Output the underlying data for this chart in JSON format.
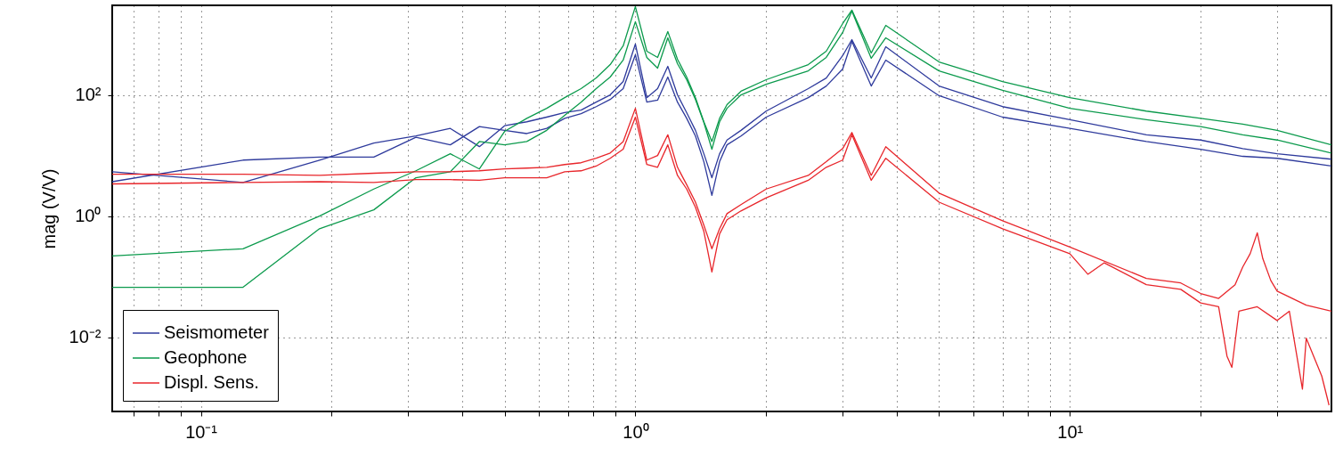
{
  "chart_data": {
    "type": "line",
    "ylabel": "mag (V/V)",
    "log": "xy",
    "grid": true,
    "legend": "bottom left",
    "xlim": [
      0.0625,
      40
    ],
    "ylim": [
      0.0006,
      3000
    ],
    "xticks": [
      {
        "value": 0.07,
        "label": null
      },
      {
        "value": 0.08,
        "label": null
      },
      {
        "value": 0.09,
        "label": null
      },
      {
        "value": 0.1,
        "label": "10⁻¹"
      },
      {
        "value": 0.2,
        "label": null
      },
      {
        "value": 0.3,
        "label": null
      },
      {
        "value": 0.4,
        "label": null
      },
      {
        "value": 0.5,
        "label": null
      },
      {
        "value": 0.6,
        "label": null
      },
      {
        "value": 0.7,
        "label": null
      },
      {
        "value": 0.8,
        "label": null
      },
      {
        "value": 0.9,
        "label": null
      },
      {
        "value": 1,
        "label": "10⁰"
      },
      {
        "value": 2,
        "label": null
      },
      {
        "value": 3,
        "label": null
      },
      {
        "value": 4,
        "label": null
      },
      {
        "value": 5,
        "label": null
      },
      {
        "value": 6,
        "label": null
      },
      {
        "value": 7,
        "label": null
      },
      {
        "value": 8,
        "label": null
      },
      {
        "value": 9,
        "label": null
      },
      {
        "value": 10,
        "label": "10¹"
      },
      {
        "value": 20,
        "label": null
      },
      {
        "value": 30,
        "label": null
      }
    ],
    "yticks": [
      {
        "value": 0.01,
        "label": "10⁻²"
      },
      {
        "value": 1,
        "label": "10⁰"
      },
      {
        "value": 100,
        "label": "10²"
      }
    ],
    "x": [
      0.0625,
      0.125,
      0.1875,
      0.25,
      0.3125,
      0.375,
      0.4375,
      0.5,
      0.5625,
      0.625,
      0.6875,
      0.75,
      0.8125,
      0.875,
      0.9375,
      1,
      1.0625,
      1.125,
      1.1875,
      1.25,
      1.3125,
      1.375,
      1.4375,
      1.5,
      1.5625,
      1.625,
      1.75,
      2,
      2.5,
      2.75,
      3,
      3.15,
      3.49,
      3.77,
      5,
      7,
      10,
      15,
      20,
      25,
      30,
      40
    ],
    "series": [
      {
        "name": "Seismometer",
        "color": "#2e3a9c",
        "values": [
          5.4,
          3.6,
          8.4,
          16,
          21,
          28,
          14,
          31,
          36,
          43,
          51,
          56,
          76,
          100,
          166,
          689,
          90,
          127,
          296,
          100,
          51,
          26,
          10.7,
          4.3,
          10.7,
          18,
          26,
          54,
          127,
          190,
          444,
          816,
          190,
          623,
          140,
          64,
          39,
          22,
          18,
          13,
          10.7,
          8.7
        ]
      },
      {
        "color": "#2e3a9c",
        "values": [
          3.7,
          8.4,
          9.4,
          9.4,
          20,
          15,
          30,
          26,
          23,
          28,
          41,
          49,
          64,
          84,
          127,
          459,
          76,
          82,
          197,
          76,
          41,
          21,
          7.9,
          2.2,
          7.9,
          15,
          21,
          43,
          90,
          140,
          267,
          763,
          140,
          375,
          97,
          43,
          28,
          17,
          12.7,
          9.7,
          9.0,
          6.7
        ]
      },
      {
        "name": "Geophone",
        "color": "#0b9a4c",
        "values": [
          0.22,
          0.29,
          1.0,
          2.8,
          5.6,
          10.7,
          6.0,
          25,
          41,
          60,
          90,
          127,
          190,
          316,
          644,
          2860,
          526,
          415,
          1110,
          387,
          197,
          90,
          36,
          17,
          41,
          69,
          115,
          178,
          316,
          526,
          1500,
          2500,
          491,
          1400,
          350,
          166,
          90,
          54,
          41,
          33,
          26,
          15
        ]
      },
      {
        "color": "#0b9a4c",
        "values": [
          0.067,
          0.067,
          0.62,
          1.27,
          4.3,
          5.4,
          17,
          15,
          17,
          26,
          46,
          76,
          127,
          197,
          375,
          1610,
          415,
          276,
          873,
          327,
          178,
          84,
          35,
          12.7,
          36,
          60,
          100,
          150,
          249,
          415,
          1070,
          2410,
          401,
          873,
          249,
          119,
          60,
          39,
          30,
          22,
          18,
          11
        ]
      },
      {
        "name": "Displ. Sens.",
        "color": "#e8262b",
        "x": [
          0.0625,
          0.125,
          0.1875,
          0.25,
          0.3125,
          0.375,
          0.4375,
          0.5,
          0.5625,
          0.625,
          0.6875,
          0.75,
          0.8125,
          0.875,
          0.9375,
          1,
          1.0625,
          1.125,
          1.1875,
          1.25,
          1.3125,
          1.375,
          1.4375,
          1.5,
          1.5625,
          1.625,
          1.75,
          2,
          2.5,
          2.75,
          3,
          3.15,
          3.49,
          3.77,
          5,
          7,
          10,
          15,
          18,
          20,
          22,
          24,
          25,
          26,
          27,
          27.8,
          29,
          30,
          35,
          40
        ],
        "values": [
          4.9,
          4.9,
          4.7,
          5.1,
          5.4,
          5.4,
          5.6,
          6.0,
          6.2,
          6.4,
          7.1,
          7.6,
          9.0,
          11,
          17,
          60,
          8.4,
          10,
          22,
          6.4,
          3.3,
          1.7,
          0.71,
          0.29,
          0.62,
          1.1,
          1.55,
          2.8,
          4.7,
          7.9,
          13,
          24,
          4.7,
          14,
          2.4,
          0.84,
          0.31,
          0.094,
          0.079,
          0.053,
          0.044,
          0.074,
          0.145,
          0.24,
          0.53,
          0.2,
          0.087,
          0.058,
          0.034,
          0.027
        ]
      },
      {
        "color": "#e8262b",
        "x": [
          0.0625,
          0.125,
          0.1875,
          0.25,
          0.3125,
          0.375,
          0.4375,
          0.5,
          0.5625,
          0.625,
          0.6875,
          0.75,
          0.8125,
          0.875,
          0.9375,
          1,
          1.0625,
          1.125,
          1.1875,
          1.25,
          1.3125,
          1.375,
          1.4375,
          1.5,
          1.5625,
          1.625,
          1.75,
          2,
          2.5,
          2.75,
          3,
          3.15,
          3.49,
          3.77,
          5,
          7,
          10,
          11,
          12,
          15,
          18,
          20,
          22,
          23,
          23.6,
          24.5,
          27,
          30,
          32,
          34.3,
          35,
          38,
          39.5
        ],
        "values": [
          3.4,
          3.6,
          3.7,
          3.6,
          4.0,
          4.0,
          3.9,
          4.3,
          4.3,
          4.3,
          5.4,
          5.6,
          6.7,
          9.0,
          12.7,
          43,
          7.1,
          6.4,
          15,
          4.7,
          2.8,
          1.4,
          0.56,
          0.12,
          0.51,
          0.87,
          1.22,
          2.0,
          3.9,
          6.4,
          8.4,
          22,
          3.9,
          9.0,
          1.7,
          0.62,
          0.24,
          0.11,
          0.17,
          0.074,
          0.062,
          0.037,
          0.032,
          0.0049,
          0.0032,
          0.027,
          0.032,
          0.019,
          0.027,
          0.0014,
          0.0097,
          0.0023,
          0.00076
        ]
      }
    ]
  }
}
